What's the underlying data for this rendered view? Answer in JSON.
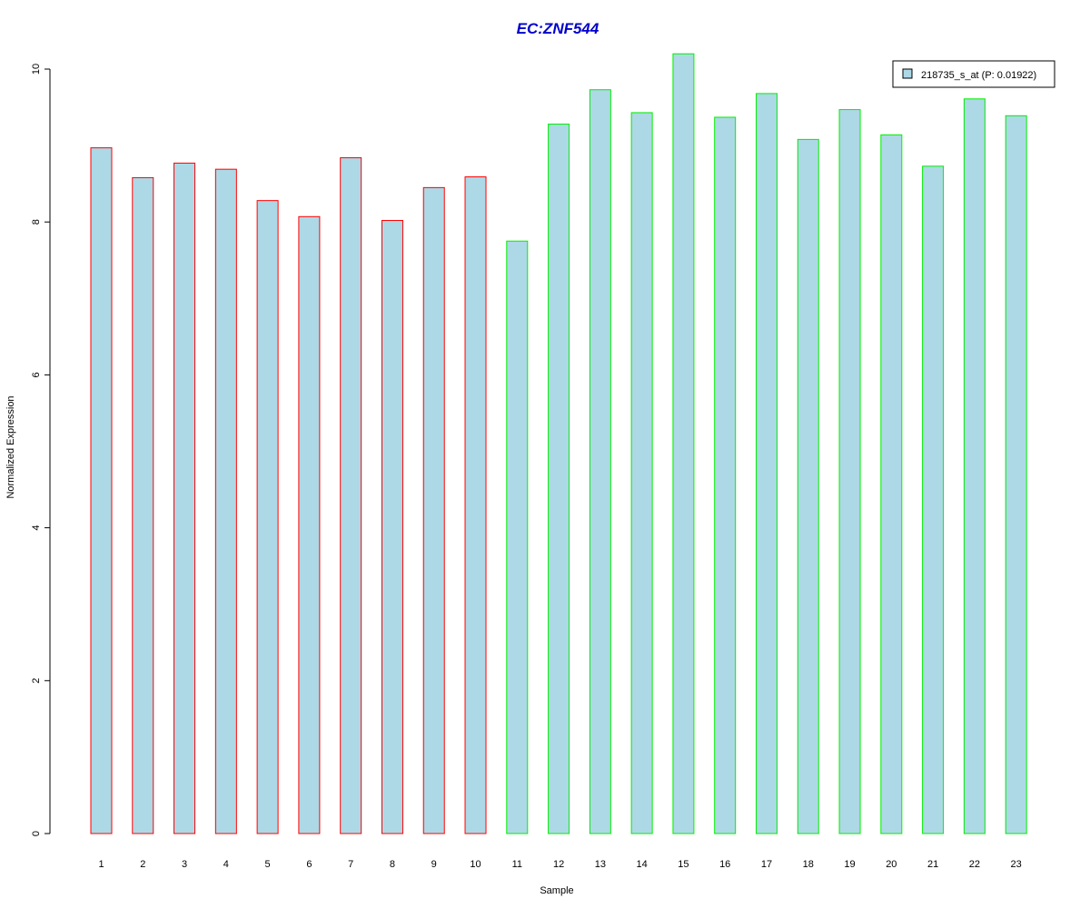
{
  "chart_data": {
    "type": "bar",
    "title": "EC:ZNF544",
    "xlabel": "Sample",
    "ylabel": "Normalized Expression",
    "categories": [
      "1",
      "2",
      "3",
      "4",
      "5",
      "6",
      "7",
      "8",
      "9",
      "10",
      "11",
      "12",
      "13",
      "14",
      "15",
      "16",
      "17",
      "18",
      "19",
      "20",
      "21",
      "22",
      "23"
    ],
    "series": [
      {
        "name": "218735_s_at (P: 0.01922)",
        "values": [
          8.97,
          8.58,
          8.77,
          8.69,
          8.28,
          8.07,
          8.84,
          8.02,
          8.45,
          8.59,
          7.75,
          9.28,
          9.73,
          9.43,
          10.2,
          9.37,
          9.68,
          9.08,
          9.47,
          9.14,
          8.73,
          9.61,
          9.39
        ]
      }
    ],
    "groups": [
      {
        "samples": [
          1,
          10
        ],
        "outline_color": "#ff0000"
      },
      {
        "samples": [
          11,
          23
        ],
        "outline_color": "#00ee00"
      }
    ],
    "ylim": [
      0,
      10.2
    ],
    "yticks": [
      0,
      2,
      4,
      6,
      8,
      10
    ],
    "grid": false,
    "legend_position": "top-right",
    "colors": {
      "bar_fill": "#add8e6",
      "title": "#0000cc",
      "axis": "#000000"
    }
  }
}
